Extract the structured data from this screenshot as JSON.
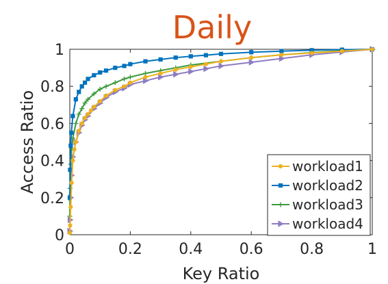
{
  "colors": {
    "title": "#D95319",
    "workload1": "#EDB120",
    "workload2": "#0072BD",
    "workload3": "#3C9A3C",
    "workload4": "#8E7CC3"
  },
  "chart_data": {
    "type": "line",
    "title": "Daily",
    "xlabel": "Key Ratio",
    "ylabel": "Access Ratio",
    "xlim": [
      0,
      1
    ],
    "ylim": [
      0,
      1
    ],
    "xticks": [
      0,
      0.2,
      0.4,
      0.6,
      0.8,
      1
    ],
    "yticks": [
      0,
      0.2,
      0.4,
      0.6,
      0.8,
      1
    ],
    "xtick_labels": [
      "0",
      "0.2",
      "0.4",
      "0.6",
      "0.8",
      "1"
    ],
    "ytick_labels": [
      "0",
      "0.2",
      "0.4",
      "0.6",
      "0.8",
      "1"
    ],
    "grid": false,
    "legend_position": "bottom-right",
    "series": [
      {
        "name": "workload1",
        "color": "#EDB120",
        "marker": "dot",
        "x": [
          0,
          0.001,
          0.003,
          0.006,
          0.01,
          0.015,
          0.02,
          0.03,
          0.04,
          0.05,
          0.06,
          0.07,
          0.08,
          0.1,
          0.12,
          0.15,
          0.18,
          0.2,
          0.25,
          0.3,
          0.35,
          0.4,
          0.45,
          0.5,
          0.6,
          0.7,
          0.8,
          0.9,
          1.0
        ],
        "y": [
          0.01,
          0.05,
          0.15,
          0.28,
          0.4,
          0.46,
          0.5,
          0.56,
          0.6,
          0.63,
          0.65,
          0.67,
          0.69,
          0.72,
          0.75,
          0.78,
          0.8,
          0.82,
          0.85,
          0.87,
          0.89,
          0.905,
          0.92,
          0.935,
          0.955,
          0.97,
          0.98,
          0.99,
          1.0
        ]
      },
      {
        "name": "workload2",
        "color": "#0072BD",
        "marker": "square",
        "x": [
          0,
          0.001,
          0.003,
          0.005,
          0.01,
          0.02,
          0.03,
          0.04,
          0.05,
          0.06,
          0.08,
          0.1,
          0.12,
          0.15,
          0.18,
          0.2,
          0.25,
          0.3,
          0.35,
          0.4,
          0.45,
          0.5,
          0.6,
          0.7,
          0.8,
          0.9,
          1.0
        ],
        "y": [
          0.2,
          0.35,
          0.48,
          0.55,
          0.64,
          0.73,
          0.77,
          0.8,
          0.82,
          0.84,
          0.86,
          0.875,
          0.885,
          0.9,
          0.91,
          0.92,
          0.935,
          0.945,
          0.955,
          0.962,
          0.968,
          0.975,
          0.984,
          0.99,
          0.995,
          0.998,
          1.0
        ]
      },
      {
        "name": "workload3",
        "color": "#3C9A3C",
        "marker": "plus",
        "x": [
          0,
          0.001,
          0.003,
          0.006,
          0.01,
          0.02,
          0.03,
          0.04,
          0.05,
          0.06,
          0.08,
          0.1,
          0.12,
          0.15,
          0.18,
          0.2,
          0.25,
          0.3,
          0.35,
          0.4,
          0.5,
          0.6,
          0.7,
          0.8,
          0.9,
          1.0
        ],
        "y": [
          0.1,
          0.25,
          0.38,
          0.46,
          0.52,
          0.6,
          0.65,
          0.68,
          0.71,
          0.73,
          0.76,
          0.785,
          0.8,
          0.82,
          0.84,
          0.85,
          0.87,
          0.885,
          0.9,
          0.915,
          0.935,
          0.955,
          0.97,
          0.982,
          0.992,
          1.0
        ]
      },
      {
        "name": "workload4",
        "color": "#8E7CC3",
        "marker": "triangle",
        "x": [
          0,
          0.001,
          0.003,
          0.006,
          0.01,
          0.02,
          0.03,
          0.04,
          0.05,
          0.06,
          0.08,
          0.1,
          0.12,
          0.15,
          0.18,
          0.2,
          0.25,
          0.3,
          0.35,
          0.4,
          0.45,
          0.5,
          0.6,
          0.7,
          0.8,
          0.9,
          1.0
        ],
        "y": [
          0.02,
          0.08,
          0.2,
          0.32,
          0.42,
          0.5,
          0.55,
          0.59,
          0.62,
          0.64,
          0.68,
          0.71,
          0.74,
          0.77,
          0.79,
          0.81,
          0.83,
          0.85,
          0.865,
          0.88,
          0.895,
          0.91,
          0.93,
          0.95,
          0.97,
          0.985,
          1.0
        ]
      }
    ]
  }
}
